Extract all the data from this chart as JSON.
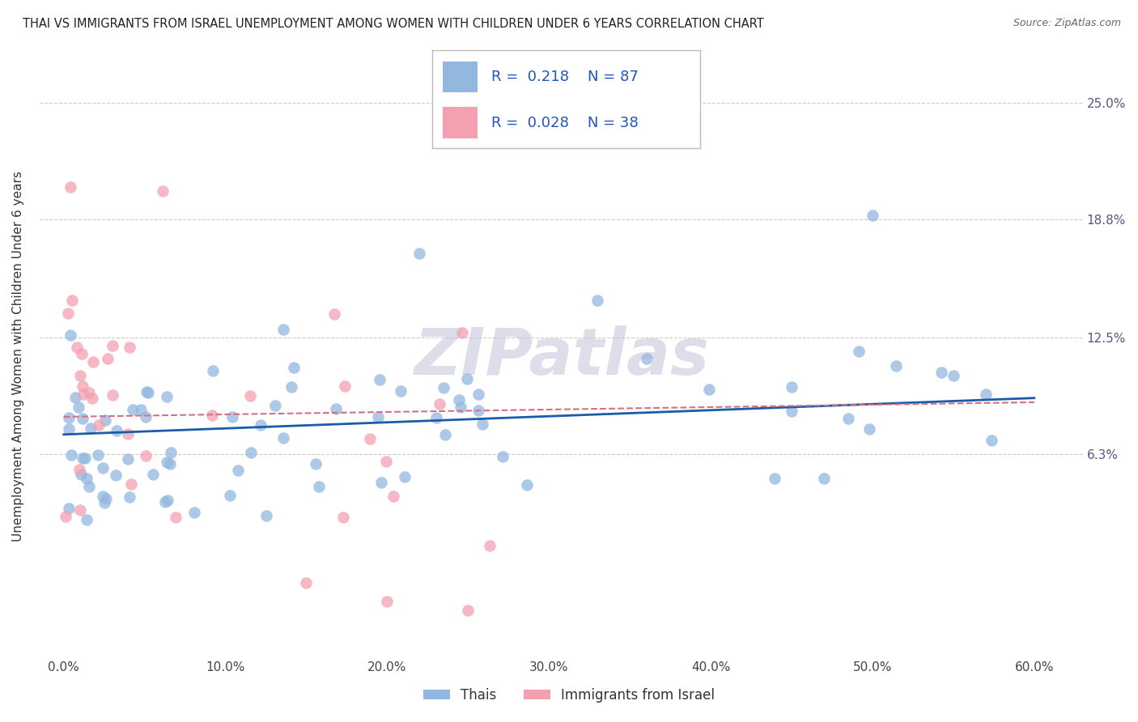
{
  "title": "THAI VS IMMIGRANTS FROM ISRAEL UNEMPLOYMENT AMONG WOMEN WITH CHILDREN UNDER 6 YEARS CORRELATION CHART",
  "source": "Source: ZipAtlas.com",
  "ylabel": "Unemployment Among Women with Children Under 6 years",
  "ylabel_tick_vals": [
    6.3,
    12.5,
    18.8,
    25.0
  ],
  "xlabel_tick_vals": [
    0.0,
    10.0,
    20.0,
    30.0,
    40.0,
    50.0,
    60.0
  ],
  "legend_R1": "0.218",
  "legend_N1": "87",
  "legend_R2": "0.028",
  "legend_N2": "38",
  "color_blue": "#93B8E0",
  "color_pink": "#F4A0B0",
  "color_line_blue": "#1A5CA8",
  "color_line_pink": "#D47080",
  "watermark": "ZIPatlas",
  "watermark_color": "#C8C8DC",
  "background_color": "#FFFFFF",
  "grid_color": "#CCCCCC"
}
